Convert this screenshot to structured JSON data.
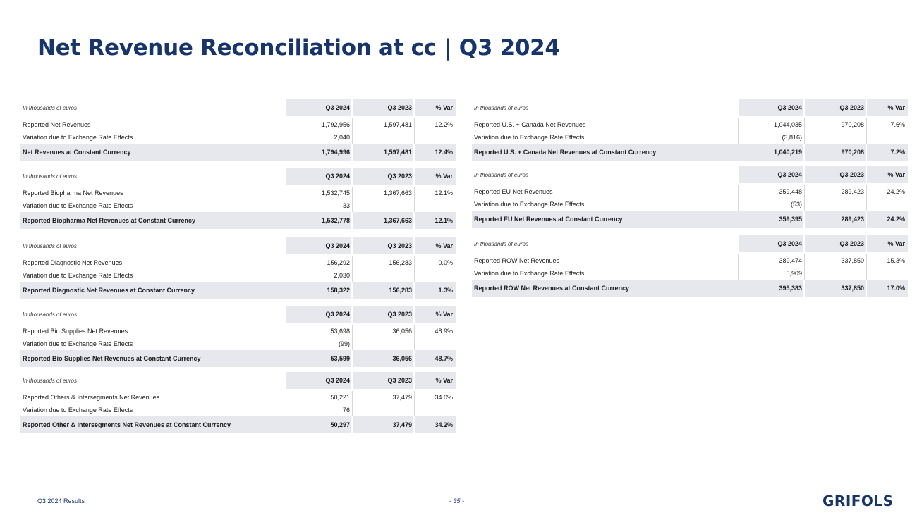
{
  "title": "Net Revenue Reconciliation at cc | Q3 2024",
  "tables_left": [
    {
      "header": {
        "label": "In thousands of euros",
        "c1": "Q3 2024",
        "c2": "Q3 2023",
        "c3": "% Var"
      },
      "rows": [
        {
          "label": "Reported Net Revenues",
          "c1": "1,792,956",
          "c2": "1,597,481",
          "c3": "12.2%"
        },
        {
          "label": "Variation due to Exchange Rate Effects",
          "c1": "2,040",
          "c2": "",
          "c3": ""
        }
      ],
      "total": {
        "label": "Net Revenues at Constant Currency",
        "c1": "1,794,996",
        "c2": "1,597,481",
        "c3": "12.4%"
      }
    },
    {
      "header": {
        "label": "In thousands of euros",
        "c1": "Q3 2024",
        "c2": "Q3 2023",
        "c3": "% Var"
      },
      "rows": [
        {
          "label": "Reported Biopharma Net Revenues",
          "c1": "1,532,745",
          "c2": "1,367,663",
          "c3": "12.1%"
        },
        {
          "label": "Variation due to Exchange Rate Effects",
          "c1": "33",
          "c2": "",
          "c3": ""
        }
      ],
      "total": {
        "label": "Reported Biopharma Net Revenues at Constant Currency",
        "c1": "1,532,778",
        "c2": "1,367,663",
        "c3": "12.1%"
      }
    },
    {
      "header": {
        "label": "In thousands of euros",
        "c1": "Q3 2024",
        "c2": "Q3 2023",
        "c3": "% Var"
      },
      "rows": [
        {
          "label": "Reported Diagnostic Net Revenues",
          "c1": "156,292",
          "c2": "156,283",
          "c3": "0.0%"
        },
        {
          "label": "Variation due to Exchange Rate Effects",
          "c1": "2,030",
          "c2": "",
          "c3": ""
        }
      ],
      "total": {
        "label": "Reported Diagnostic Net Revenues at Constant Currency",
        "c1": "158,322",
        "c2": "156,283",
        "c3": "1.3%"
      }
    },
    {
      "header": {
        "label": "In thousands of euros",
        "c1": "Q3 2024",
        "c2": "Q3 2023",
        "c3": "% Var"
      },
      "rows": [
        {
          "label": "Reported Bio Supplies Net Revenues",
          "c1": "53,698",
          "c2": "36,056",
          "c3": "48.9%"
        },
        {
          "label": "Variation due to Exchange Rate Effects",
          "c1": "(99)",
          "c2": "",
          "c3": ""
        }
      ],
      "total": {
        "label": "Reported Bio Supplies Net Revenues at Constant Currency",
        "c1": "53,599",
        "c2": "36,056",
        "c3": "48.7%"
      }
    },
    {
      "header": {
        "label": "In thousands of euros",
        "c1": "Q3 2024",
        "c2": "Q3 2023",
        "c3": "% Var"
      },
      "rows": [
        {
          "label": "Reported Others & Intersegments Net Revenues",
          "c1": "50,221",
          "c2": "37,479",
          "c3": "34.0%"
        },
        {
          "label": "Variation due to Exchange Rate Effects",
          "c1": "76",
          "c2": "",
          "c3": ""
        }
      ],
      "total": {
        "label": "Reported Other & Intersegments Net Revenues at Constant  Currency",
        "c1": "50,297",
        "c2": "37,479",
        "c3": "34.2%"
      }
    }
  ],
  "tables_right": [
    {
      "header": {
        "label": "In thousands of euros",
        "c1": "Q3 2024",
        "c2": "Q3 2023",
        "c3": "% Var"
      },
      "rows": [
        {
          "label": "Reported U.S. + Canada Net Revenues",
          "c1": "1,044,035",
          "c2": "970,208",
          "c3": "7.6%"
        },
        {
          "label": "Variation due to Exchange Rate Effects",
          "c1": "(3,816)",
          "c2": "",
          "c3": ""
        }
      ],
      "total": {
        "label": "Reported U.S. + Canada Net Revenues at Constant Currency",
        "c1": "1,040,219",
        "c2": "970,208",
        "c3": "7.2%"
      }
    },
    {
      "header": {
        "label": "In thousands of euros",
        "c1": "Q3 2024",
        "c2": "Q3 2023",
        "c3": "% Var"
      },
      "rows": [
        {
          "label": "Reported EU Net Revenues",
          "c1": "359,448",
          "c2": "289,423",
          "c3": "24.2%"
        },
        {
          "label": "Variation due to Exchange Rate Effects",
          "c1": "(53)",
          "c2": "",
          "c3": ""
        }
      ],
      "total": {
        "label": "Reported EU Net Revenues at Constant Currency",
        "c1": "359,395",
        "c2": "289,423",
        "c3": "24.2%"
      }
    },
    {
      "header": {
        "label": "In thousands of euros",
        "c1": "Q3 2024",
        "c2": "Q3 2023",
        "c3": "% Var"
      },
      "rows": [
        {
          "label": "Reported ROW Net Revenues",
          "c1": "389,474",
          "c2": "337,850",
          "c3": "15.3%"
        },
        {
          "label": "Variation due to Exchange Rate Effects",
          "c1": "5,909",
          "c2": "",
          "c3": ""
        }
      ],
      "total": {
        "label": "Reported ROW Net Revenues at Constant Currency",
        "c1": "395,383",
        "c2": "337,850",
        "c3": "17.0%"
      }
    }
  ],
  "footer": {
    "left": "Q3 2024 Results",
    "page": "- 35 -",
    "logo": "GRIFOLS"
  },
  "colors": {
    "brand": "#17356b",
    "band": "#e6e8ee"
  }
}
